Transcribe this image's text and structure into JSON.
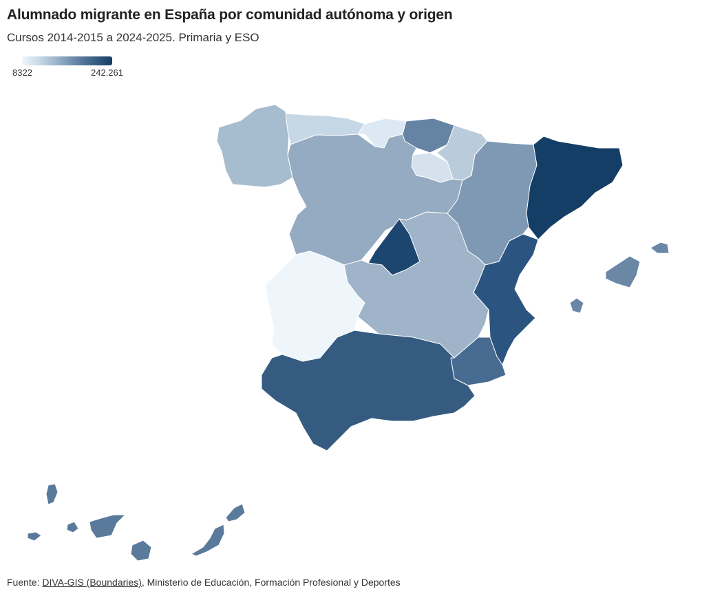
{
  "title": "Alumnado migrante en España por comunidad autónoma y origen",
  "subtitle": "Cursos 2014-2015 a 2024-2025. Primaria y ESO",
  "legend": {
    "min_label": "8322",
    "max_label": "242.261",
    "color_low": "#eef6fc",
    "color_high": "#143e66"
  },
  "source": {
    "prefix": "Fuente: ",
    "link_text": "DIVA-GIS (Boundaries)",
    "rest": ", Ministerio de Educación, Formación Profesional y Deportes"
  },
  "regions": [
    {
      "name": "Galicia",
      "color": "#a6bccf"
    },
    {
      "name": "Asturias",
      "color": "#c6d7e5"
    },
    {
      "name": "Cantabria",
      "color": "#dce9f4"
    },
    {
      "name": "País Vasco",
      "color": "#6583a3"
    },
    {
      "name": "Navarra",
      "color": "#bacbdb"
    },
    {
      "name": "La Rioja",
      "color": "#d5e2ee"
    },
    {
      "name": "Castilla y León",
      "color": "#95abc1"
    },
    {
      "name": "Aragón",
      "color": "#7f99b4"
    },
    {
      "name": "Cataluña",
      "color": "#143e66"
    },
    {
      "name": "Comunidad de Madrid",
      "color": "#1c4670"
    },
    {
      "name": "Extremadura",
      "color": "#eef6fc"
    },
    {
      "name": "Castilla-La Mancha",
      "color": "#9fb4c8"
    },
    {
      "name": "Comunitat Valenciana",
      "color": "#2b5580"
    },
    {
      "name": "Región de Murcia",
      "color": "#476b91"
    },
    {
      "name": "Andalucía",
      "color": "#365b80"
    },
    {
      "name": "Illes Balears",
      "color": "#6a87a6"
    },
    {
      "name": "Canarias",
      "color": "#5a7a9c"
    }
  ]
}
